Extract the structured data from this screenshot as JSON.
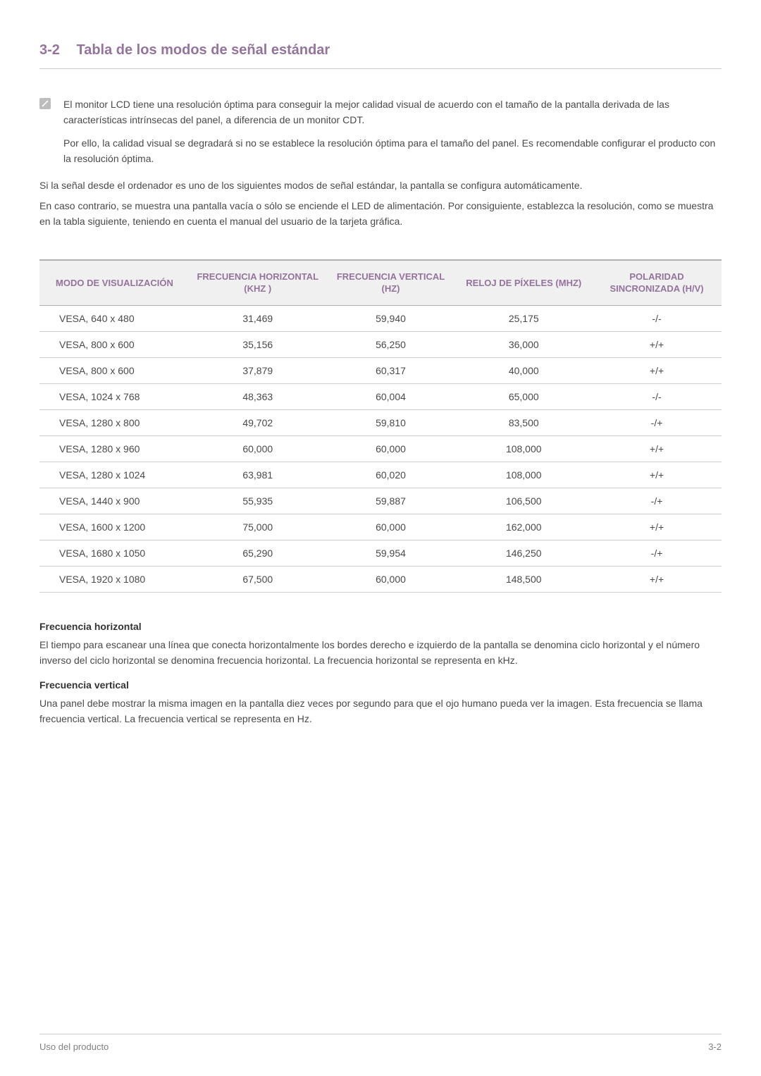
{
  "heading": {
    "number": "3-2",
    "title": "Tabla de los modos de señal estándar"
  },
  "note": {
    "p1": "El monitor LCD tiene una resolución óptima para conseguir la mejor calidad visual de acuerdo con el tamaño de la pantalla derivada de las características intrínsecas del panel, a diferencia de un monitor CDT.",
    "p2": "Por ello, la calidad visual se degradará si no se establece la resolución óptima para el tamaño del panel. Es recomendable configurar el producto con la resolución óptima."
  },
  "body": {
    "p1": "Si la señal desde el ordenador es uno de los siguientes modos de señal estándar, la pantalla se configura automáticamente.",
    "p2": "En caso contrario, se muestra una pantalla vacía o sólo se enciende el LED de alimentación. Por consiguiente, establezca la resolución, como se muestra en la tabla siguiente, teniendo en cuenta el manual del usuario de la tarjeta gráfica."
  },
  "table": {
    "columns": [
      "MODO DE VISUALIZACIÓN",
      "FRECUENCIA HORIZONTAL (KHZ )",
      "FRECUENCIA VERTICAL (HZ)",
      "RELOJ DE PÍXELES (MHZ)",
      "POLARIDAD SINCRONIZADA (H/V)"
    ],
    "col_widths": [
      "22%",
      "20%",
      "19%",
      "20%",
      "19%"
    ],
    "header_bg": "#f0f0f0",
    "header_color": "#94739c",
    "border_color": "#cfcfcf",
    "rows": [
      [
        "VESA, 640 x 480",
        "31,469",
        "59,940",
        "25,175",
        "-/-"
      ],
      [
        "VESA, 800 x 600",
        "35,156",
        "56,250",
        "36,000",
        "+/+"
      ],
      [
        "VESA, 800 x 600",
        "37,879",
        "60,317",
        "40,000",
        "+/+"
      ],
      [
        "VESA, 1024 x 768",
        "48,363",
        "60,004",
        "65,000",
        "-/-"
      ],
      [
        "VESA, 1280 x 800",
        "49,702",
        "59,810",
        "83,500",
        "-/+"
      ],
      [
        "VESA, 1280 x 960",
        "60,000",
        "60,000",
        "108,000",
        "+/+"
      ],
      [
        "VESA, 1280 x 1024",
        "63,981",
        "60,020",
        "108,000",
        "+/+"
      ],
      [
        "VESA, 1440 x 900",
        "55,935",
        "59,887",
        "106,500",
        "-/+"
      ],
      [
        "VESA, 1600 x 1200",
        "75,000",
        "60,000",
        "162,000",
        "+/+"
      ],
      [
        "VESA, 1680 x 1050",
        "65,290",
        "59,954",
        "146,250",
        "-/+"
      ],
      [
        "VESA, 1920 x 1080",
        "67,500",
        "60,000",
        "148,500",
        "+/+"
      ]
    ]
  },
  "defs": {
    "h1": "Frecuencia horizontal",
    "b1": "El tiempo para escanear una línea que conecta horizontalmente los bordes derecho e izquierdo de la pantalla se denomina ciclo horizontal y el número inverso del ciclo horizontal se denomina frecuencia horizontal. La frecuencia horizontal se representa en kHz.",
    "h2": "Frecuencia vertical",
    "b2": "Una panel debe mostrar la misma imagen en la pantalla diez veces por segundo para que el ojo humano pueda ver la imagen. Esta frecuencia se llama frecuencia vertical. La frecuencia vertical se representa en Hz."
  },
  "footer": {
    "left": "Uso del producto",
    "right": "3-2"
  },
  "colors": {
    "accent": "#94739c",
    "text": "#4a4a4a",
    "rule": "#cfcfcf"
  }
}
